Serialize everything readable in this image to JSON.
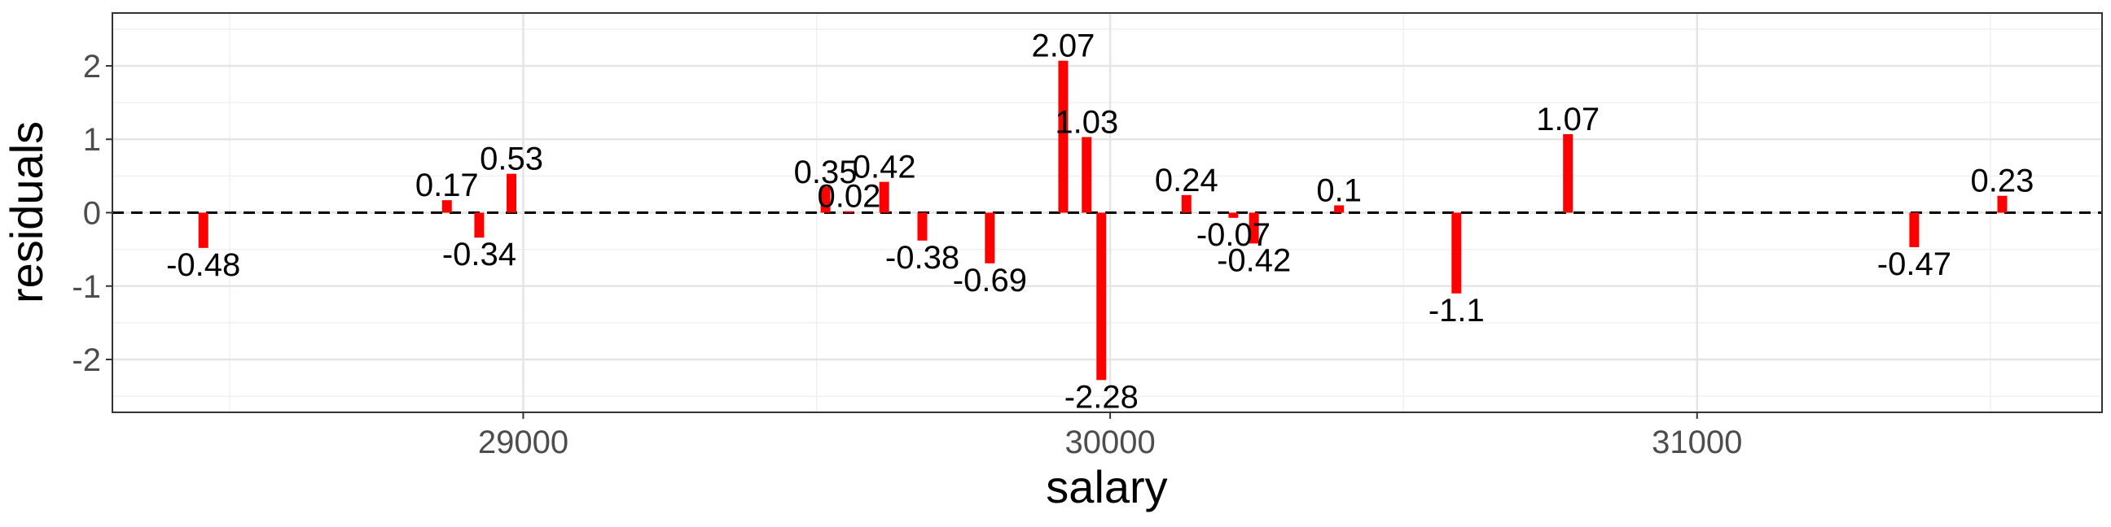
{
  "chart_data": {
    "type": "bar",
    "title": "",
    "xlabel": "salary",
    "ylabel": "residuals",
    "xlim": [
      28300,
      31690
    ],
    "ylim": [
      -2.72,
      2.72
    ],
    "x_ticks": [
      29000,
      30000,
      31000
    ],
    "y_ticks": [
      -2,
      -1,
      0,
      1,
      2
    ],
    "grid": true,
    "reference_line": {
      "y": 0,
      "style": "dashed"
    },
    "bar_color": "#ff0000",
    "points": [
      {
        "x": 28455,
        "y": -0.48,
        "label": "-0.48"
      },
      {
        "x": 28870,
        "y": 0.17,
        "label": "0.17"
      },
      {
        "x": 28925,
        "y": -0.34,
        "label": "-0.34"
      },
      {
        "x": 28980,
        "y": 0.53,
        "label": "0.53"
      },
      {
        "x": 29515,
        "y": 0.35,
        "label": "0.35"
      },
      {
        "x": 29555,
        "y": 0.02,
        "label": "0.02"
      },
      {
        "x": 29615,
        "y": 0.42,
        "label": "0.42"
      },
      {
        "x": 29680,
        "y": -0.38,
        "label": "-0.38"
      },
      {
        "x": 29795,
        "y": -0.69,
        "label": "-0.69"
      },
      {
        "x": 29920,
        "y": 2.07,
        "label": "2.07"
      },
      {
        "x": 29960,
        "y": 1.03,
        "label": "1.03"
      },
      {
        "x": 29985,
        "y": -2.28,
        "label": "-2.28"
      },
      {
        "x": 30130,
        "y": 0.24,
        "label": "0.24"
      },
      {
        "x": 30210,
        "y": -0.07,
        "label": "-0.07"
      },
      {
        "x": 30245,
        "y": -0.42,
        "label": "-0.42"
      },
      {
        "x": 30390,
        "y": 0.1,
        "label": "0.1"
      },
      {
        "x": 30590,
        "y": -1.1,
        "label": "-1.1"
      },
      {
        "x": 30780,
        "y": 1.07,
        "label": "1.07"
      },
      {
        "x": 31370,
        "y": -0.47,
        "label": "-0.47"
      },
      {
        "x": 31520,
        "y": 0.23,
        "label": "0.23"
      }
    ]
  }
}
